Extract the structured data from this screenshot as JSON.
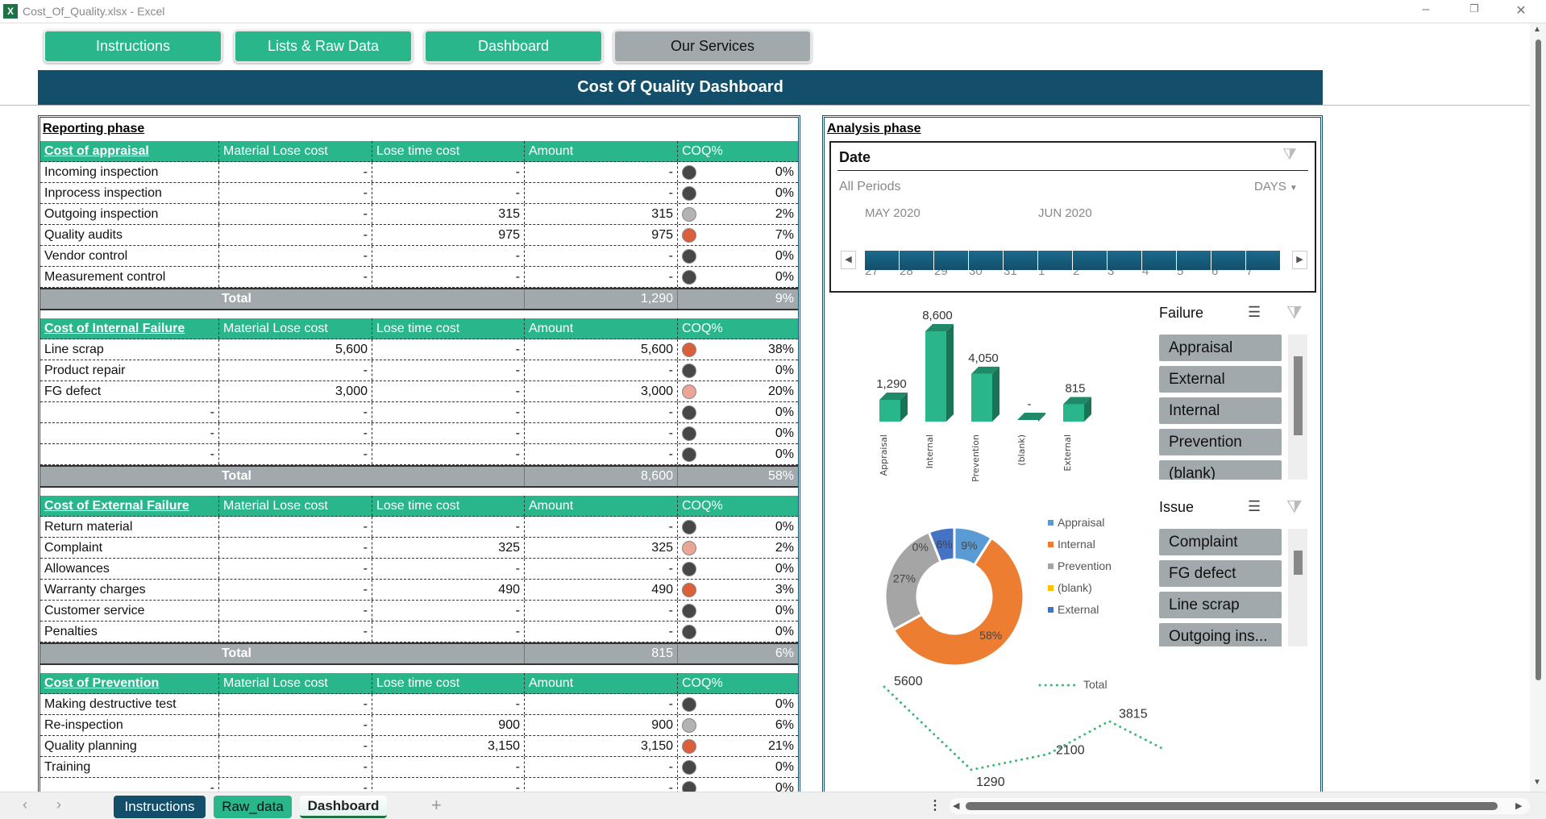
{
  "window": {
    "title": "Cost_Of_Quality.xlsx - Excel",
    "app_icon": "excel-icon",
    "minimize": "–",
    "restore": "❐",
    "close": "✕"
  },
  "nav": [
    {
      "label": "Instructions",
      "color": "#29b68b"
    },
    {
      "label": "Lists & Raw Data",
      "color": "#29b68b"
    },
    {
      "label": "Dashboard",
      "color": "#29b68b"
    },
    {
      "label": "Our Services",
      "color": "#a1a9ad"
    }
  ],
  "banner": "Cost Of Quality Dashboard",
  "reporting": {
    "title": "Reporting phase",
    "columns": [
      "Material Lose cost",
      "Lose time cost",
      "Amount",
      "COQ%"
    ],
    "indicator_colors": {
      "low": "#474747",
      "light": "#b3b3b3",
      "high": "#d9603b",
      "medium": "#eaa596"
    },
    "sections": [
      {
        "name": "Cost of appraisal",
        "rows": [
          [
            "Incoming inspection",
            "-",
            "-",
            "-",
            "low",
            "0%"
          ],
          [
            "Inprocess inspection",
            "-",
            "-",
            "-",
            "low",
            "0%"
          ],
          [
            "Outgoing inspection",
            "-",
            "315",
            "315",
            "light",
            "2%"
          ],
          [
            "Quality audits",
            "-",
            "975",
            "975",
            "high",
            "7%"
          ],
          [
            "Vendor control",
            "-",
            "-",
            "-",
            "low",
            "0%"
          ],
          [
            "Measurement control",
            "-",
            "-",
            "-",
            "low",
            "0%"
          ]
        ],
        "total_label": "Total",
        "total_amount": "1,290",
        "total_pct": "9%"
      },
      {
        "name": "Cost of Internal Failure",
        "rows": [
          [
            "Line scrap",
            "5,600",
            "-",
            "5,600",
            "high",
            "38%"
          ],
          [
            "Product repair",
            "-",
            "-",
            "-",
            "low",
            "0%"
          ],
          [
            "FG defect",
            "3,000",
            "-",
            "3,000",
            "medium",
            "20%"
          ],
          [
            "-",
            "-",
            "-",
            "-",
            "low",
            "0%"
          ],
          [
            "-",
            "-",
            "-",
            "-",
            "low",
            "0%"
          ],
          [
            "-",
            "-",
            "-",
            "-",
            "low",
            "0%"
          ]
        ],
        "total_label": "Total",
        "total_amount": "8,600",
        "total_pct": "58%"
      },
      {
        "name": "Cost of External Failure",
        "rows": [
          [
            "Return material",
            "-",
            "-",
            "-",
            "low",
            "0%"
          ],
          [
            "Complaint",
            "-",
            "325",
            "325",
            "medium",
            "2%"
          ],
          [
            "Allowances",
            "-",
            "-",
            "-",
            "low",
            "0%"
          ],
          [
            "Warranty charges",
            "-",
            "490",
            "490",
            "high",
            "3%"
          ],
          [
            "Customer service",
            "-",
            "-",
            "-",
            "low",
            "0%"
          ],
          [
            "Penalties",
            "-",
            "-",
            "-",
            "low",
            "0%"
          ]
        ],
        "total_label": "Total",
        "total_amount": "815",
        "total_pct": "6%"
      },
      {
        "name": "Cost of Prevention",
        "rows": [
          [
            "Making destructive test",
            "-",
            "-",
            "-",
            "low",
            "0%"
          ],
          [
            "Re-inspection",
            "-",
            "900",
            "900",
            "light",
            "6%"
          ],
          [
            "Quality planning",
            "-",
            "3,150",
            "3,150",
            "high",
            "21%"
          ],
          [
            "Training",
            "-",
            "-",
            "-",
            "low",
            "0%"
          ],
          [
            "-",
            "-",
            "-",
            "-",
            "low",
            "0%"
          ]
        ]
      }
    ]
  },
  "analysis": {
    "title": "Analysis phase",
    "date_slicer": {
      "title": "Date",
      "range": "All Periods",
      "level": "DAYS",
      "months": [
        "MAY 2020",
        "JUN 2020"
      ],
      "days": [
        "27",
        "28",
        "29",
        "30",
        "31",
        "1",
        "2",
        "3",
        "4",
        "5",
        "6",
        "7"
      ]
    },
    "failure_slicer": {
      "title": "Failure",
      "items": [
        "Appraisal",
        "External",
        "Internal",
        "Prevention",
        "(blank)"
      ]
    },
    "issue_slicer": {
      "title": "Issue",
      "items": [
        "Complaint",
        "FG defect",
        "Line scrap",
        "Outgoing ins..."
      ]
    }
  },
  "chart_data": [
    {
      "type": "bar",
      "categories": [
        "Appraisal",
        "Internal",
        "Prevention",
        "(blank)",
        "External"
      ],
      "values": [
        1290,
        8600,
        4050,
        0,
        815
      ],
      "data_labels": [
        "1,290",
        "8,600",
        "4,050",
        "-",
        "815"
      ],
      "color": "#29b68b"
    },
    {
      "type": "pie",
      "subtype": "donut",
      "categories": [
        "Appraisal",
        "Internal",
        "Prevention",
        "(blank)",
        "External"
      ],
      "values": [
        9,
        58,
        27,
        0,
        6
      ],
      "data_labels": [
        "9%",
        "58%",
        "27%",
        "0%",
        "6%"
      ],
      "colors": [
        "#5b9bd5",
        "#ed7d31",
        "#a5a5a5",
        "#ffc000",
        "#4472c4"
      ],
      "legend": "right"
    },
    {
      "type": "line",
      "series": [
        {
          "name": "Total",
          "values": [
            5600,
            1290,
            2100,
            3815,
            1950
          ]
        }
      ],
      "style": "dotted",
      "color": "#3cb878",
      "legend": "top"
    }
  ],
  "sheet_tabs": [
    {
      "label": "Instructions",
      "color": "#134f6b"
    },
    {
      "label": "Raw_data",
      "color": "#29b68b"
    },
    {
      "label": "Dashboard",
      "active": true
    }
  ],
  "add_sheet": "+"
}
